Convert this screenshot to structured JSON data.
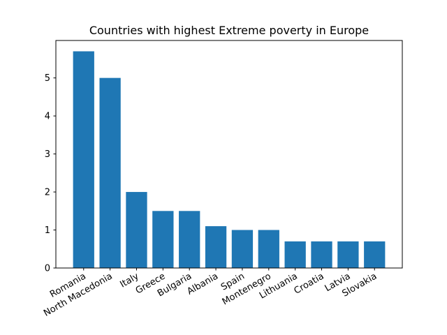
{
  "chart_data": {
    "type": "bar",
    "title": "Countries with highest Extreme poverty  in Europe",
    "xlabel": "",
    "ylabel": "",
    "categories": [
      "Romania",
      "North Macedonia",
      "Italy",
      "Greece",
      "Bulgaria",
      "Albania",
      "Spain",
      "Montenegro",
      "Lithuania",
      "Croatia",
      "Latvia",
      "Slovakia"
    ],
    "values": [
      5.7,
      5.0,
      2.0,
      1.5,
      1.5,
      1.1,
      1.0,
      1.0,
      0.7,
      0.7,
      0.7,
      0.7
    ],
    "ylim": [
      0,
      5.985
    ],
    "yticks": [
      0,
      1,
      2,
      3,
      4,
      5
    ],
    "bar_color": "#1f77b4",
    "grid": false,
    "legend": "none"
  }
}
